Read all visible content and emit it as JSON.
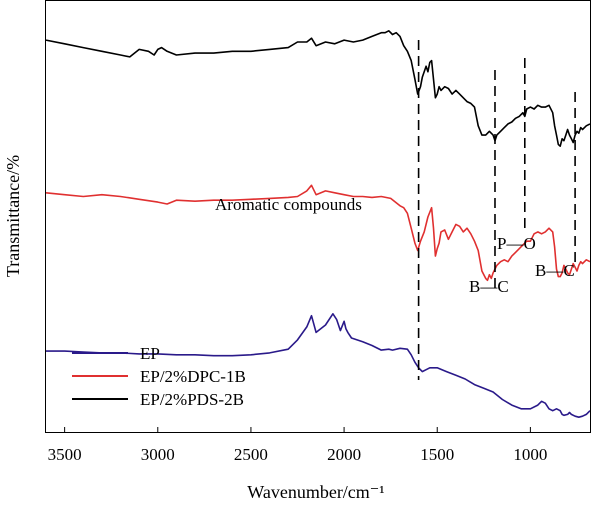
{
  "chart_data": {
    "type": "line",
    "title": "",
    "xlabel": "Wavenumber/cm⁻¹",
    "ylabel": "Transmittance/%",
    "xlim": [
      3600,
      680
    ],
    "x_reversed": true,
    "x_ticks": [
      3500,
      3000,
      2500,
      2000,
      1500,
      1000
    ],
    "y_ticks_shown": false,
    "grid": false,
    "legend_position": "bottom-left",
    "series": [
      {
        "name": "EP",
        "color": "#2a1a8a",
        "x": [
          3600,
          3500,
          3400,
          3300,
          3200,
          3100,
          3000,
          2900,
          2800,
          2700,
          2600,
          2500,
          2400,
          2300,
          2250,
          2200,
          2175,
          2150,
          2100,
          2060,
          2040,
          2020,
          2000,
          1990,
          1980,
          1960,
          1900,
          1850,
          1800,
          1760,
          1740,
          1700,
          1660,
          1640,
          1620,
          1600,
          1580,
          1560,
          1540,
          1500,
          1450,
          1400,
          1350,
          1300,
          1250,
          1200,
          1150,
          1100,
          1050,
          1000,
          960,
          940,
          920,
          900,
          880,
          860,
          840,
          830,
          820,
          800,
          790,
          780,
          760,
          740,
          720,
          700,
          680
        ],
        "y": [
          44,
          44,
          43.5,
          43,
          43,
          42.5,
          42.5,
          42,
          42,
          41.5,
          41.5,
          42,
          43,
          45,
          50,
          57,
          63,
          54,
          58,
          64,
          61,
          55,
          60,
          56,
          54,
          51,
          49,
          47,
          44.5,
          45,
          44.5,
          45.5,
          45,
          42,
          38,
          35,
          33,
          34,
          35,
          35,
          33,
          31,
          29,
          26,
          24,
          22,
          18,
          15,
          13,
          13,
          15,
          17,
          16,
          13,
          12,
          13,
          12,
          10,
          9.5,
          10,
          11,
          10,
          9,
          8.5,
          9,
          10,
          12
        ]
      },
      {
        "name": "EP/2%DPC-1B",
        "color": "#e03030",
        "x": [
          3600,
          3500,
          3400,
          3300,
          3200,
          3100,
          3000,
          2950,
          2900,
          2800,
          2700,
          2600,
          2500,
          2400,
          2300,
          2250,
          2200,
          2175,
          2150,
          2100,
          2050,
          2000,
          1950,
          1900,
          1850,
          1800,
          1750,
          1700,
          1680,
          1660,
          1640,
          1620,
          1605,
          1590,
          1570,
          1550,
          1530,
          1520,
          1510,
          1500,
          1490,
          1480,
          1460,
          1440,
          1420,
          1400,
          1380,
          1360,
          1340,
          1320,
          1300,
          1280,
          1260,
          1240,
          1230,
          1220,
          1210,
          1200,
          1180,
          1160,
          1140,
          1120,
          1100,
          1080,
          1060,
          1040,
          1020,
          1000,
          980,
          960,
          940,
          920,
          900,
          880,
          870,
          860,
          850,
          840,
          830,
          820,
          810,
          800,
          790,
          780,
          770,
          760,
          750,
          740,
          730,
          720,
          700,
          680
        ],
        "y": [
          129,
          128,
          127,
          128,
          127,
          125.5,
          124,
          123,
          125,
          124.5,
          125,
          125,
          125.5,
          126,
          126.5,
          127,
          130,
          133,
          128,
          130,
          129,
          128,
          127,
          127,
          126.5,
          127,
          126,
          122,
          121,
          118,
          110,
          102,
          98,
          103,
          108,
          116,
          121,
          110,
          95,
          99,
          102,
          108,
          109,
          104,
          108,
          112,
          111,
          108,
          110,
          107,
          103,
          98,
          87,
          83,
          82,
          85,
          83,
          86,
          90,
          92,
          93,
          92,
          95,
          97,
          99,
          101,
          103,
          103,
          107,
          108,
          107,
          108,
          110,
          108,
          100,
          88,
          84,
          84,
          86,
          90,
          88,
          86,
          85,
          88,
          91,
          89,
          87,
          90,
          92,
          91,
          93,
          92
        ]
      },
      {
        "name": "EP/2%PDS-2B",
        "color": "#000000",
        "x": [
          3600,
          3500,
          3400,
          3300,
          3200,
          3150,
          3100,
          3050,
          3020,
          3000,
          2980,
          2950,
          2900,
          2800,
          2700,
          2600,
          2500,
          2400,
          2300,
          2250,
          2200,
          2175,
          2150,
          2100,
          2050,
          2000,
          1950,
          1900,
          1850,
          1800,
          1780,
          1760,
          1740,
          1720,
          1700,
          1680,
          1660,
          1640,
          1620,
          1605,
          1590,
          1580,
          1570,
          1560,
          1550,
          1540,
          1530,
          1520,
          1510,
          1500,
          1490,
          1480,
          1460,
          1440,
          1420,
          1400,
          1380,
          1360,
          1340,
          1320,
          1300,
          1280,
          1260,
          1240,
          1220,
          1200,
          1190,
          1180,
          1160,
          1140,
          1120,
          1100,
          1080,
          1060,
          1040,
          1030,
          1020,
          1000,
          980,
          960,
          940,
          920,
          900,
          880,
          870,
          860,
          850,
          840,
          830,
          820,
          810,
          800,
          790,
          780,
          770,
          760,
          750,
          740,
          730,
          720,
          700,
          680
        ],
        "y": [
          211,
          209,
          207,
          205,
          203,
          202,
          206,
          205,
          203,
          206,
          207,
          205,
          203,
          204,
          204,
          205,
          205,
          206,
          207,
          210,
          210,
          212,
          208,
          210,
          209,
          211,
          210,
          211,
          213,
          215,
          215,
          216,
          214,
          215,
          213,
          208,
          205,
          200,
          190,
          182,
          186,
          191,
          194,
          197,
          194,
          199,
          200,
          190,
          180,
          182,
          186,
          184,
          186,
          185,
          182,
          184,
          182,
          180,
          178,
          177,
          175,
          165,
          160,
          160,
          162,
          160,
          157,
          160,
          162,
          164,
          166,
          167,
          169,
          170,
          172,
          170,
          174,
          175,
          174,
          176,
          175,
          175,
          176,
          172,
          165,
          160,
          155,
          154,
          158,
          157,
          160,
          163,
          160,
          158,
          156,
          160,
          162,
          161,
          164,
          163,
          165,
          166
        ]
      }
    ],
    "annotations": [
      {
        "text": "Aromatic compounds",
        "x": 1600
      },
      {
        "text": "B—C",
        "x": 1190
      },
      {
        "text": "P—O",
        "x": 1030
      },
      {
        "text": "B—C",
        "x": 780
      }
    ],
    "marker_lines_x": [
      1600,
      1190,
      1030,
      760
    ]
  }
}
